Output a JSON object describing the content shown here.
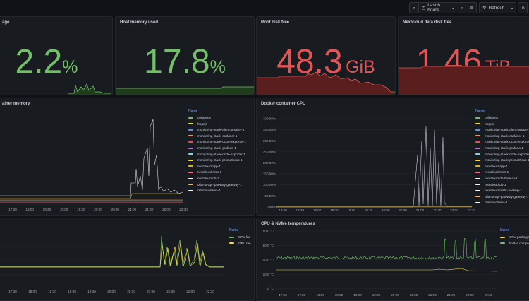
{
  "toolbar": {
    "zoom_out_label": "‹",
    "time_range_label": "Last 6 hours",
    "refresh_label": "Refresh"
  },
  "colors": {
    "green": "#73bf69",
    "red": "#e05555",
    "panel": "#181b1f",
    "grid": "#2b2e35"
  },
  "panels": {
    "usage": {
      "title": "age",
      "value": "2.2",
      "unit": "%",
      "color": "#73bf69"
    },
    "host_memory": {
      "title": "Host memory used",
      "value": "17.8",
      "unit": "%",
      "color": "#73bf69"
    },
    "root_disk": {
      "title": "Root disk free",
      "value": "48.3",
      "unit": "GiB",
      "color": "#e05555"
    },
    "nextcloud_disk": {
      "title": "Nextcloud data disk free",
      "value": "1.46",
      "unit": "TiB",
      "color": "#e05555"
    },
    "container_memory": {
      "title": "ainer memory",
      "legend_header": "Name",
      "legend": [
        {
          "name": "collabora",
          "color": "#73bf69"
        },
        {
          "name": "forgejo",
          "color": "#fade2a"
        },
        {
          "name": "monitoring-stack-alertmanager-1",
          "color": "#5794f2"
        },
        {
          "name": "monitoring-stack-cadvisor-1",
          "color": "#ff9830"
        },
        {
          "name": "monitoring-stack-dcgm-exporter-1",
          "color": "#f2495c"
        },
        {
          "name": "monitoring-stack-grafana-1",
          "color": "#b877d9"
        },
        {
          "name": "monitoring-stack-node-exporter-1",
          "color": "#70dbed"
        },
        {
          "name": "monitoring-stack-prometheus-1",
          "color": "#fade2a"
        },
        {
          "name": "nextcloud-app-1",
          "color": "#e0b400"
        },
        {
          "name": "nextcloud-cron-1",
          "color": "#ff7383"
        },
        {
          "name": "nextcloud-db-1",
          "color": "#ffffff"
        },
        {
          "name": "ollama-api-gateway-gateway-1",
          "color": "#ffb357"
        },
        {
          "name": "ollama-ollama-1",
          "color": "#ffffff"
        }
      ],
      "x_ticks": [
        "17:30",
        "18:00",
        "18:30",
        "19:00",
        "19:30",
        "20:00",
        "20:30",
        "21:00",
        "21:30",
        "22:00",
        "22:30"
      ]
    },
    "container_cpu": {
      "title": "Docker container CPU",
      "legend_header": "Name",
      "legend": [
        {
          "name": "collabora",
          "color": "#73bf69"
        },
        {
          "name": "forgejo",
          "color": "#fade2a"
        },
        {
          "name": "monitoring-stack-alertmanager-1",
          "color": "#5794f2"
        },
        {
          "name": "monitoring-stack-cadvisor-1",
          "color": "#ff9830"
        },
        {
          "name": "monitoring-stack-dcgm-exporter-1",
          "color": "#f2495c"
        },
        {
          "name": "monitoring-stack-grafana-1",
          "color": "#b877d9"
        },
        {
          "name": "monitoring-stack-node-exporter-1",
          "color": "#70dbed"
        },
        {
          "name": "monitoring-stack-prometheus-1",
          "color": "#fade2a"
        },
        {
          "name": "nextcloud-app-1",
          "color": "#e0b400"
        },
        {
          "name": "nextcloud-cron-1",
          "color": "#ff7383"
        },
        {
          "name": "nextcloud-db-backup-1",
          "color": "#ffffff"
        },
        {
          "name": "nextcloud-db-1",
          "color": "#ffffff"
        },
        {
          "name": "nextcloud-restic-backup-1",
          "color": "#ffffff"
        },
        {
          "name": "ollama-api-gateway-gateway-1",
          "color": "#ffb357"
        },
        {
          "name": "ollama-ollama-1",
          "color": "#ffffff"
        }
      ],
      "y_ticks": [
        "400.00%",
        "350.00%",
        "300.00%",
        "250.00%",
        "200.00%",
        "150.00%",
        "100.00%",
        "50.00%",
        "0.00%"
      ],
      "x_ticks": [
        "17:00",
        "17:30",
        "18:00",
        "18:30",
        "19:00",
        "19:30",
        "20:00",
        "20:30",
        "21:00",
        "21:30",
        "22:00",
        "22:30"
      ]
    },
    "fans": {
      "title": "",
      "legend_header": "Name",
      "legend": [
        {
          "name": "CPU fan",
          "color": "#73bf69"
        },
        {
          "name": "GPU fan",
          "color": "#fade2a"
        }
      ],
      "x_ticks": [
        "17:30",
        "18:00",
        "18:30",
        "19:00",
        "19:30",
        "20:00",
        "20:30",
        "21:00",
        "21:30",
        "22:00",
        "22:30"
      ]
    },
    "temps": {
      "title": "CPU & NVMe temperatures",
      "legend_header": "Name",
      "legend": [
        {
          "name": "CPU package",
          "color": "#fade2a"
        },
        {
          "name": "NVMe compos",
          "color": "#73bf69"
        }
      ],
      "y_ticks": [
        "80.0 °C",
        "60.0 °C",
        "40.0 °C",
        "20.0 °C",
        "0 °C"
      ],
      "x_ticks": [
        "17:00",
        "17:30",
        "18:00",
        "18:30",
        "19:00",
        "19:30",
        "20:00",
        "20:30",
        "21:00",
        "21:30",
        "22:00",
        "22:30"
      ]
    }
  }
}
